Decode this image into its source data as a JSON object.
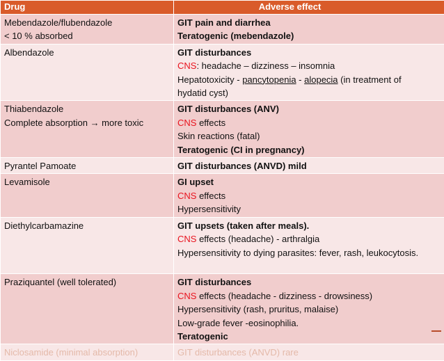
{
  "table": {
    "headers": {
      "drug": "Drug",
      "adverse": "Adverse effect"
    },
    "rows": [
      {
        "drug": [
          "Mebendazole/flubendazole",
          "< 10 % absorbed"
        ],
        "effects": [
          [
            {
              "t": "GIT pain and diarrhea",
              "s": "bold"
            }
          ],
          [
            {
              "t": "Teratogenic (mebendazole)",
              "s": "bold"
            }
          ]
        ]
      },
      {
        "drug": [
          "Albendazole"
        ],
        "effects": [
          [
            {
              "t": "GIT disturbances",
              "s": "bold"
            }
          ],
          [
            {
              "t": "CNS",
              "s": "red"
            },
            {
              "t": ": headache – dizziness – insomnia",
              "s": ""
            }
          ],
          [
            {
              "t": "Hepatotoxicity - ",
              "s": ""
            },
            {
              "t": "pancytopenia",
              "s": "ul"
            },
            {
              "t": " - ",
              "s": ""
            },
            {
              "t": "alopecia",
              "s": "ul"
            },
            {
              "t": " (in treatment of",
              "s": ""
            }
          ],
          [
            {
              "t": "hydatid cyst)",
              "s": ""
            }
          ]
        ]
      },
      {
        "drug": [
          "Thiabendazole",
          "Complete absorption → more toxic"
        ],
        "effects": [
          [
            {
              "t": "GIT disturbances (ANV)",
              "s": "bold"
            }
          ],
          [
            {
              "t": "CNS",
              "s": "red"
            },
            {
              "t": " effects",
              "s": ""
            }
          ],
          [
            {
              "t": "Skin reactions (fatal)",
              "s": ""
            }
          ],
          [
            {
              "t": "Teratogenic (CI in pregnancy)",
              "s": "bold"
            }
          ]
        ]
      },
      {
        "drug": [
          "Pyrantel Pamoate"
        ],
        "effects": [
          [
            {
              "t": "GIT disturbances (ANVD) mild",
              "s": "bold"
            }
          ]
        ]
      },
      {
        "drug": [
          "Levamisole"
        ],
        "effects": [
          [
            {
              "t": "GI upset",
              "s": "bold"
            }
          ],
          [
            {
              "t": "CNS",
              "s": "red"
            },
            {
              "t": " effects",
              "s": ""
            }
          ],
          [
            {
              "t": "Hypersensitivity",
              "s": ""
            }
          ]
        ]
      },
      {
        "drug": [
          "Diethylcarbamazine"
        ],
        "effects": [
          [
            {
              "t": "GIT upsets (taken after meals).",
              "s": "bold"
            }
          ],
          [
            {
              "t": "CNS",
              "s": "red"
            },
            {
              "t": " effects (headache) - arthralgia",
              "s": ""
            }
          ],
          [
            {
              "t": "Hypersensitivity to dying parasites: fever, rash, leukocytosis.",
              "s": ""
            }
          ],
          [
            {
              "t": "",
              "s": ""
            }
          ]
        ]
      },
      {
        "drug": [
          "Praziquantel (well tolerated)"
        ],
        "effects": [
          [
            {
              "t": "GIT disturbances",
              "s": "bold"
            }
          ],
          [
            {
              "t": "CNS",
              "s": "red"
            },
            {
              "t": " effects (headache - dizziness - drowsiness)",
              "s": ""
            }
          ],
          [
            {
              "t": "Hypersensitivity (rash, pruritus, malaise)",
              "s": ""
            }
          ],
          [
            {
              "t": "Low-grade fever -eosinophilia.",
              "s": ""
            }
          ],
          [
            {
              "t": "Teratogenic",
              "s": "bold"
            }
          ]
        ]
      },
      {
        "drug": [
          "Niclosamide (minimal absorption)"
        ],
        "effects": [
          [
            {
              "t": "GIT disturbances (ANVD) rare",
              "s": ""
            }
          ]
        ]
      }
    ]
  },
  "colors": {
    "header_bg": "#d95b2a",
    "row_dark": "#f1cdcd",
    "row_light": "#f8e7e7",
    "highlight_red": "#e8141f"
  }
}
